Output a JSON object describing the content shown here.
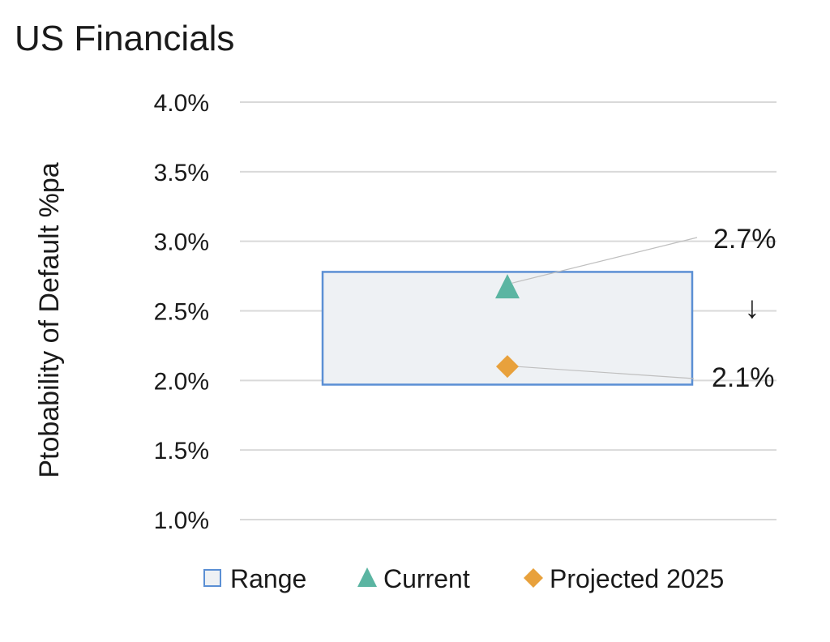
{
  "chart_data": {
    "type": "range",
    "title": "US Financials",
    "ylabel": "Ptobability of Default %pa",
    "ylim": [
      1.0,
      4.0
    ],
    "yticks": [
      1.0,
      1.5,
      2.0,
      2.5,
      3.0,
      3.5,
      4.0
    ],
    "ytick_labels": [
      "1.0%",
      "1.5%",
      "2.0%",
      "2.5%",
      "3.0%",
      "3.5%",
      "4.0%"
    ],
    "grid": true,
    "range": {
      "name": "Range",
      "low": 1.97,
      "high": 2.78,
      "color": "#5b8fd4",
      "fill": "#eef1f4"
    },
    "series": [
      {
        "name": "Current",
        "value": 2.7,
        "label": "2.7%",
        "marker": "triangle",
        "color": "#5bb5a2"
      },
      {
        "name": "Projected 2025",
        "value": 2.1,
        "label": "2.1%",
        "marker": "diamond",
        "color": "#e8a13c"
      }
    ],
    "annotation": {
      "glyph": "↓",
      "meaning": "downward-change-arrow"
    },
    "legend": {
      "placement": "bottom",
      "items": [
        {
          "label": "Range",
          "marker": "square-outline"
        },
        {
          "label": "Current",
          "marker": "triangle"
        },
        {
          "label": "Projected 2025",
          "marker": "diamond"
        }
      ]
    }
  }
}
